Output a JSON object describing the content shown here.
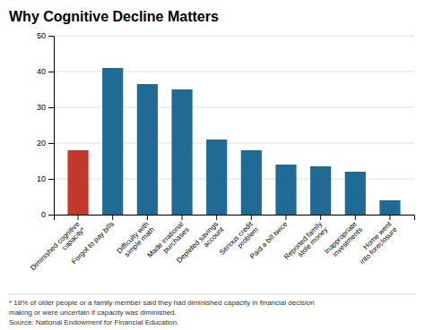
{
  "chart_data": {
    "type": "bar",
    "title": "Why Cognitive Decline Matters",
    "categories": [
      "Diminished cognitive\ncapacity*",
      "Forgot to pay bills",
      "Difficulty with\nsimple math",
      "Made irrational\npurchases",
      "Depleted savings\naccount",
      "Serious credit\nproblem",
      "Paid a bill twice",
      "Reported family\nstole money",
      "Inappropriate\ninvestments",
      "Home went\ninto foreclosure"
    ],
    "values": [
      18,
      41,
      36.5,
      35,
      21,
      18,
      14,
      13.5,
      12,
      4
    ],
    "colors": [
      "#c0392b",
      "#1f6b96",
      "#1f6b96",
      "#1f6b96",
      "#1f6b96",
      "#1f6b96",
      "#1f6b96",
      "#1f6b96",
      "#1f6b96",
      "#1f6b96"
    ],
    "ylim": [
      0,
      50
    ],
    "yticks": [
      0,
      10,
      20,
      30,
      40,
      50
    ],
    "grid": true,
    "annotations": [
      "* 18% of older people or a family member said they had diminished capacity in financial decision",
      "making or were uncertain if capacity was diminished.",
      "Source: National Endowment for Financial Education."
    ]
  }
}
